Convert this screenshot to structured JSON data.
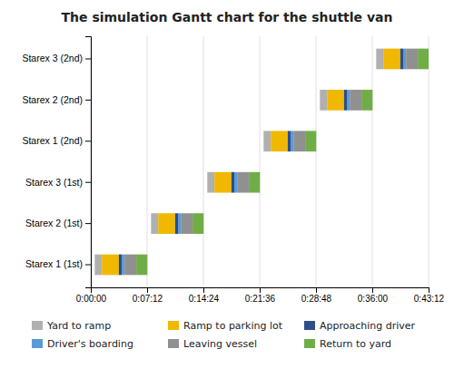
{
  "chart_data": {
    "type": "gantt",
    "orientation": "horizontal",
    "title": "The simulation Gantt chart for the shuttle van",
    "categories": [
      "Starex 1 (1st)",
      "Starex 2 (1st)",
      "Starex 3 (1st)",
      "Starex 1 (2nd)",
      "Starex 2 (2nd)",
      "Starex 3 (2nd)"
    ],
    "series": [
      {
        "name": "Yard to ramp",
        "color": "#b0b0b0",
        "start": [
          30,
          462,
          894,
          1326,
          1758,
          2190
        ],
        "values": [
          55,
          55,
          55,
          55,
          55,
          55
        ]
      },
      {
        "name": "Ramp to parking lot",
        "color": "#f0b800",
        "start": [
          85,
          517,
          949,
          1381,
          1813,
          2245
        ],
        "values": [
          130,
          130,
          130,
          130,
          130,
          130
        ]
      },
      {
        "name": "Approaching driver",
        "color": "#2e4d8a",
        "start": [
          215,
          647,
          1079,
          1511,
          1943,
          2375
        ],
        "values": [
          22,
          22,
          22,
          22,
          22,
          22
        ]
      },
      {
        "name": "Driver's boarding",
        "color": "#5b9bd5",
        "start": [
          237,
          669,
          1101,
          1533,
          1965,
          2397
        ],
        "values": [
          22,
          22,
          22,
          22,
          22,
          22
        ]
      },
      {
        "name": "Leaving vessel",
        "color": "#909090",
        "start": [
          259,
          691,
          1123,
          1555,
          1987,
          2419
        ],
        "values": [
          90,
          90,
          90,
          90,
          90,
          90
        ]
      },
      {
        "name": "Return to yard",
        "color": "#70ad47",
        "start": [
          349,
          781,
          1213,
          1645,
          2077,
          2509
        ],
        "values": [
          85,
          85,
          85,
          85,
          85,
          83
        ]
      }
    ],
    "xlim": [
      0,
      2592
    ],
    "xticks": [
      {
        "value": 0,
        "label": "0:00:00"
      },
      {
        "value": 432,
        "label": "0:07:12"
      },
      {
        "value": 864,
        "label": "0:14:24"
      },
      {
        "value": 1296,
        "label": "0:21:36"
      },
      {
        "value": 1728,
        "label": "0:28:48"
      },
      {
        "value": 2160,
        "label": "0:36:00"
      },
      {
        "value": 2592,
        "label": "0:43:12"
      }
    ],
    "grid": true,
    "legend": "bottom"
  }
}
